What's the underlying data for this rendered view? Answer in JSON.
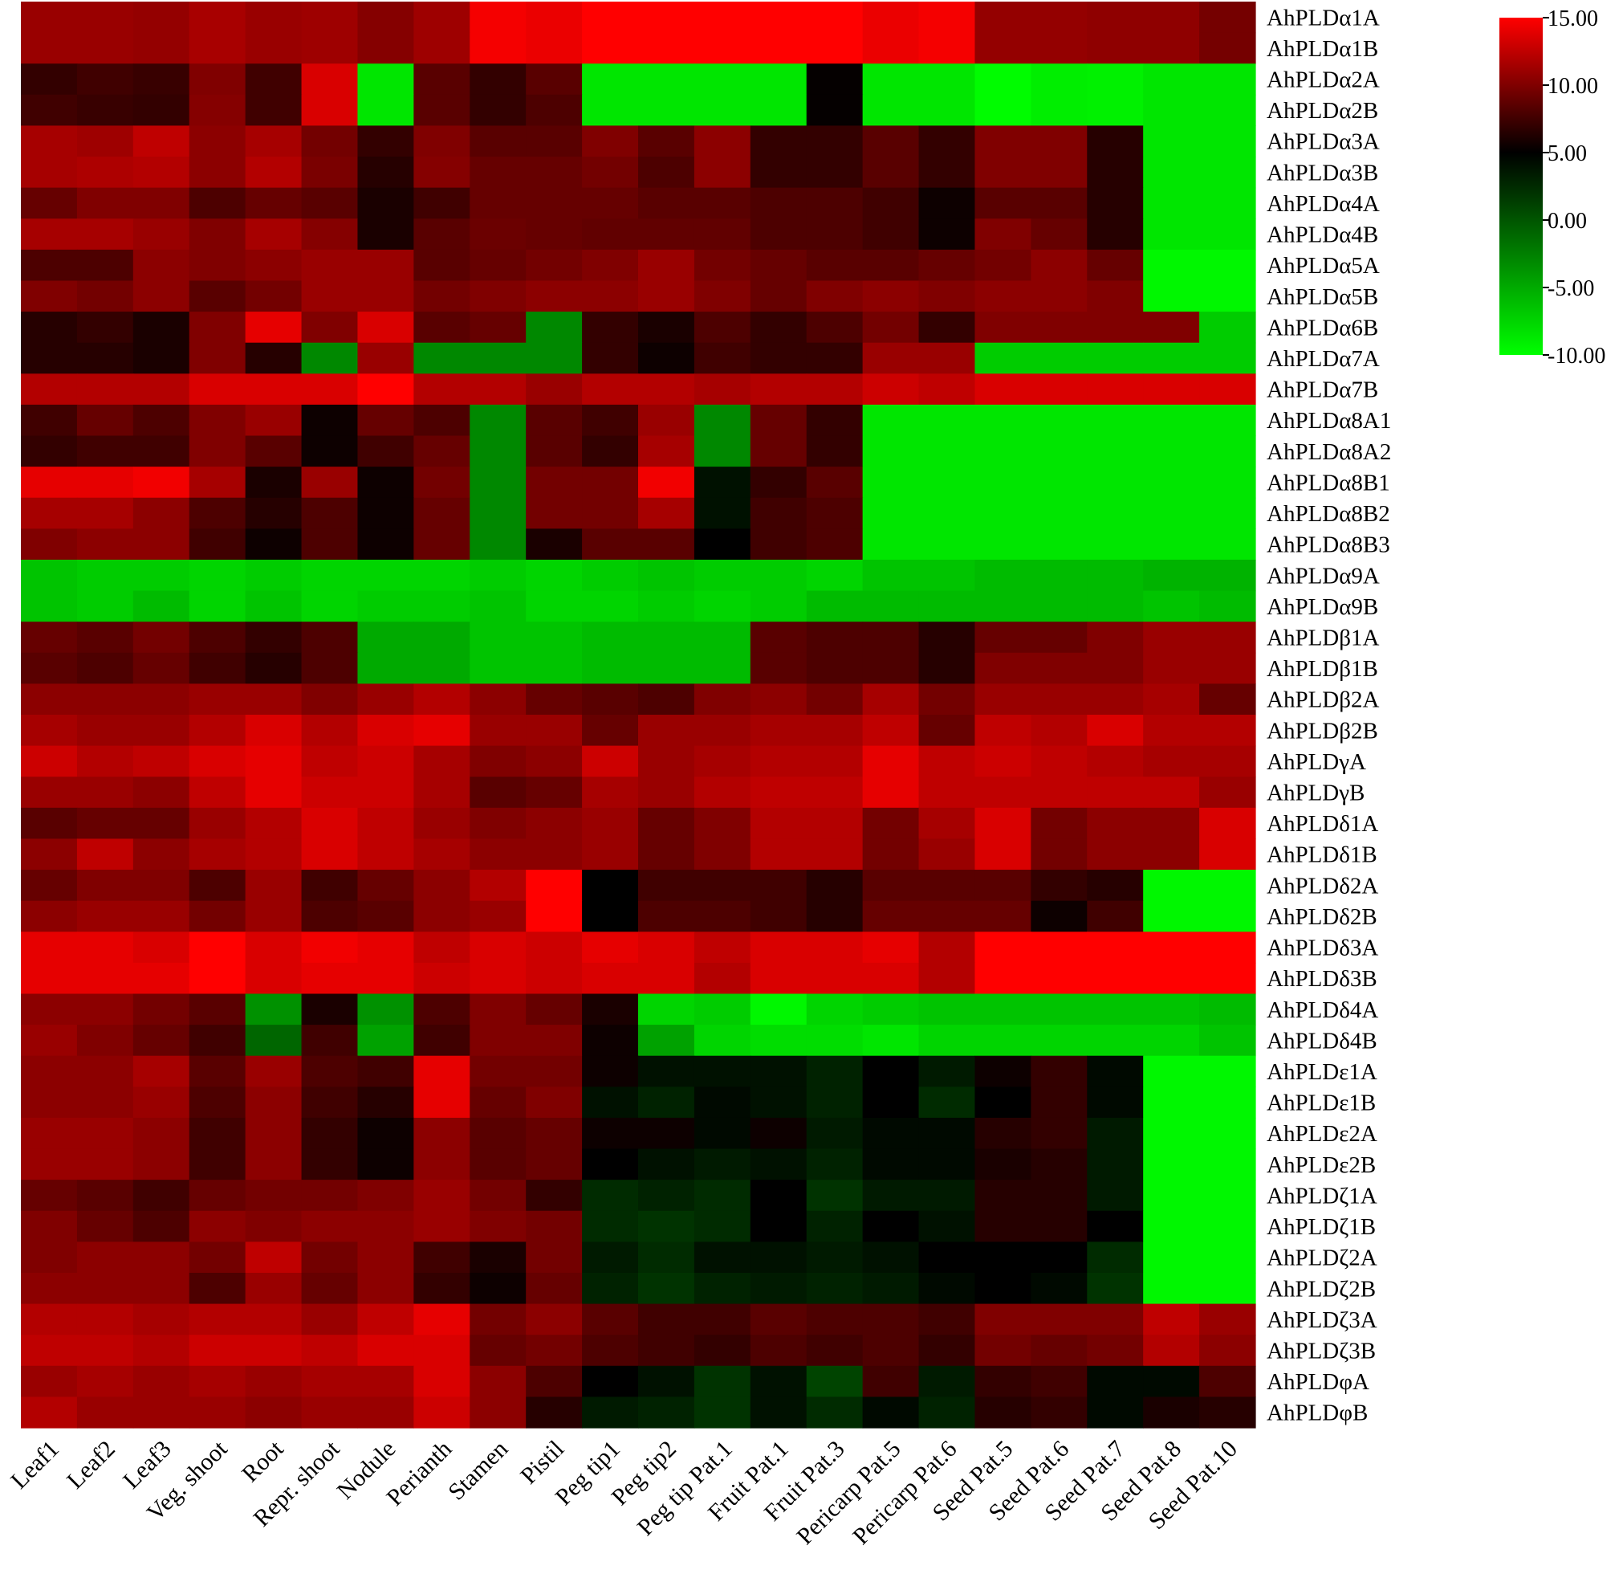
{
  "chart_data": {
    "type": "heatmap",
    "title": "",
    "xlabel": "",
    "ylabel": "",
    "colorscale": {
      "min": -10,
      "max": 15,
      "stops": [
        {
          "value": -10,
          "color": "#00ff00"
        },
        {
          "value": 5,
          "color": "#000000"
        },
        {
          "value": 15,
          "color": "#ff0000"
        }
      ],
      "tick_labels": [
        "15.00",
        "10.00",
        "5.00",
        "0.00",
        "-5.00",
        "-10.00"
      ],
      "tick_values": [
        15,
        10,
        5,
        0,
        -5,
        -10
      ]
    },
    "columns": [
      "Leaf1",
      "Leaf2",
      "Leaf3",
      "Veg. shoot",
      "Root",
      "Repr. shoot",
      "Nodule",
      "Perianth",
      "Stamen",
      "Pistil",
      "Peg tip1",
      "Peg tip2",
      "Peg tip Pat.1",
      "Fruit Pat.1",
      "Fruit Pat.3",
      "Pericarp Pat.5",
      "Pericarp Pat.6",
      "Seed Pat.5",
      "Seed Pat.6",
      "Seed Pat.7",
      "Seed Pat.8",
      "Seed Pat.10"
    ],
    "rows": [
      "AhPLDα1A",
      "AhPLDα1B",
      "AhPLDα2A",
      "AhPLDα2B",
      "AhPLDα3A",
      "AhPLDα3B",
      "AhPLDα4A",
      "AhPLDα4B",
      "AhPLDα5A",
      "AhPLDα5B",
      "AhPLDα6B",
      "AhPLDα7A",
      "AhPLDα7B",
      "AhPLDα8A1",
      "AhPLDα8A2",
      "AhPLDα8B1",
      "AhPLDα8B2",
      "AhPLDα8B3",
      "AhPLDα9A",
      "AhPLDα9B",
      "AhPLDβ1A",
      "AhPLDβ1B",
      "AhPLDβ2A",
      "AhPLDβ2B",
      "AhPLDγA",
      "AhPLDγB",
      "AhPLDδ1A",
      "AhPLDδ1B",
      "AhPLDδ2A",
      "AhPLDδ2B",
      "AhPLDδ3A",
      "AhPLDδ3B",
      "AhPLDδ4A",
      "AhPLDδ4B",
      "AhPLDε1A",
      "AhPLDε1B",
      "AhPLDε2A",
      "AhPLDε2B",
      "AhPLDζ1A",
      "AhPLDζ1B",
      "AhPLDζ2A",
      "AhPLDζ2B",
      "AhPLDζ3A",
      "AhPLDζ3B",
      "AhPLDφA",
      "AhPLDφB"
    ],
    "values": [
      [
        11.0,
        11.0,
        10.8,
        11.6,
        11.0,
        11.2,
        10.2,
        11.2,
        14.6,
        14.2,
        15.0,
        15.0,
        15.0,
        15.0,
        15.0,
        14.2,
        14.6,
        10.8,
        10.8,
        10.6,
        10.6,
        9.6
      ],
      [
        11.0,
        11.0,
        10.8,
        11.6,
        11.0,
        11.2,
        10.2,
        11.2,
        14.6,
        14.2,
        15.0,
        15.0,
        15.0,
        15.0,
        15.0,
        14.2,
        14.6,
        10.8,
        10.8,
        10.6,
        10.6,
        9.6
      ],
      [
        7.0,
        7.5,
        7.2,
        10.0,
        7.5,
        13.5,
        -8.5,
        8.5,
        7.0,
        8.5,
        -8.5,
        -8.5,
        -8.5,
        -8.5,
        5.2,
        -8.5,
        -8.5,
        -9.8,
        -9.0,
        -9.2,
        -8.5,
        -8.5
      ],
      [
        7.5,
        7.2,
        7.0,
        10.2,
        7.5,
        13.5,
        -8.5,
        8.5,
        7.0,
        8.0,
        -8.5,
        -8.5,
        -8.5,
        -8.5,
        5.2,
        -8.5,
        -8.5,
        -9.8,
        -9.0,
        -9.2,
        -8.5,
        -8.5
      ],
      [
        11.5,
        11.2,
        12.5,
        10.5,
        11.5,
        9.5,
        7.0,
        10.0,
        8.5,
        8.5,
        10.0,
        8.5,
        10.5,
        7.0,
        7.0,
        8.5,
        7.0,
        10.0,
        10.0,
        6.5,
        -8.5,
        -8.5
      ],
      [
        11.5,
        11.8,
        12.0,
        10.5,
        12.0,
        9.8,
        6.5,
        10.2,
        9.0,
        9.0,
        9.5,
        8.0,
        10.5,
        7.0,
        7.0,
        8.5,
        7.0,
        10.0,
        10.0,
        6.5,
        -8.5,
        -8.5
      ],
      [
        9.0,
        10.0,
        10.0,
        8.0,
        9.0,
        8.5,
        6.0,
        7.5,
        9.0,
        9.0,
        9.0,
        8.5,
        8.5,
        8.0,
        8.0,
        7.5,
        5.5,
        8.5,
        8.5,
        6.5,
        -8.5,
        -8.5
      ],
      [
        11.5,
        11.5,
        11.0,
        10.0,
        11.5,
        10.2,
        6.0,
        8.5,
        9.2,
        9.0,
        8.8,
        8.8,
        8.8,
        8.0,
        8.0,
        7.5,
        5.5,
        10.0,
        9.0,
        6.5,
        -8.5,
        -8.5
      ],
      [
        8.0,
        8.0,
        10.5,
        10.0,
        10.5,
        11.0,
        11.0,
        8.5,
        9.0,
        9.5,
        10.0,
        11.0,
        9.5,
        9.0,
        8.5,
        8.5,
        9.0,
        9.5,
        10.5,
        9.0,
        -9.5,
        -9.5
      ],
      [
        10.0,
        9.5,
        10.5,
        8.5,
        9.5,
        11.0,
        11.0,
        9.5,
        10.0,
        10.5,
        10.5,
        11.0,
        10.0,
        9.0,
        10.0,
        10.5,
        10.0,
        10.5,
        10.5,
        10.0,
        -9.5,
        -9.5
      ],
      [
        6.5,
        7.0,
        6.0,
        10.0,
        14.0,
        10.0,
        13.5,
        8.5,
        9.0,
        -3.0,
        7.0,
        6.0,
        8.0,
        7.0,
        8.0,
        9.5,
        7.0,
        10.0,
        10.0,
        10.0,
        10.0,
        -7.0
      ],
      [
        6.5,
        6.5,
        6.0,
        10.0,
        6.5,
        -3.0,
        11.0,
        -3.0,
        -3.0,
        -3.0,
        7.0,
        5.5,
        7.5,
        7.0,
        7.0,
        11.0,
        11.0,
        -7.0,
        -7.0,
        -7.0,
        -7.0,
        -7.0
      ],
      [
        12.0,
        12.0,
        12.0,
        13.5,
        13.5,
        13.5,
        15.0,
        12.0,
        12.0,
        11.0,
        12.0,
        12.0,
        11.5,
        12.0,
        12.0,
        13.0,
        12.5,
        13.5,
        13.5,
        13.5,
        13.5,
        13.5
      ],
      [
        7.5,
        9.0,
        8.0,
        10.0,
        11.0,
        5.5,
        9.0,
        8.0,
        -3.0,
        8.5,
        7.5,
        11.0,
        -3.0,
        9.0,
        7.0,
        -8.5,
        -8.5,
        -8.5,
        -8.5,
        -8.5,
        -8.5,
        -8.5
      ],
      [
        7.0,
        7.5,
        7.5,
        10.0,
        8.5,
        5.5,
        7.5,
        9.0,
        -3.0,
        8.5,
        7.0,
        11.5,
        -3.0,
        9.0,
        7.0,
        -8.5,
        -8.5,
        -8.5,
        -8.5,
        -8.5,
        -8.5,
        -8.5
      ],
      [
        14.0,
        14.0,
        14.5,
        11.5,
        6.0,
        11.0,
        5.5,
        9.5,
        -3.0,
        9.5,
        9.5,
        14.5,
        4.0,
        7.0,
        8.5,
        -8.5,
        -8.5,
        -8.5,
        -8.5,
        -8.5,
        -8.5,
        -8.5
      ],
      [
        11.5,
        11.5,
        10.5,
        8.0,
        6.5,
        8.0,
        5.5,
        9.0,
        -3.0,
        9.5,
        9.5,
        11.5,
        4.0,
        7.5,
        8.0,
        -8.5,
        -8.5,
        -8.5,
        -8.5,
        -8.5,
        -8.5,
        -8.5
      ],
      [
        10.0,
        10.5,
        10.5,
        7.5,
        5.5,
        8.0,
        5.5,
        9.0,
        -3.0,
        6.0,
        8.5,
        8.5,
        5.0,
        7.5,
        8.0,
        -8.5,
        -8.5,
        -8.5,
        -8.5,
        -8.5,
        -8.5,
        -8.5
      ],
      [
        -6.5,
        -7.0,
        -7.0,
        -7.5,
        -7.0,
        -7.5,
        -7.5,
        -7.5,
        -7.0,
        -7.5,
        -7.0,
        -6.5,
        -7.0,
        -7.0,
        -7.5,
        -6.5,
        -6.5,
        -6.0,
        -6.0,
        -6.0,
        -5.5,
        -5.5
      ],
      [
        -6.5,
        -7.0,
        -6.0,
        -7.5,
        -6.5,
        -7.5,
        -7.0,
        -7.0,
        -6.5,
        -7.5,
        -7.5,
        -7.0,
        -7.5,
        -7.0,
        -6.0,
        -6.0,
        -6.0,
        -6.0,
        -6.0,
        -6.0,
        -6.5,
        -6.0
      ],
      [
        9.0,
        8.5,
        9.5,
        8.0,
        7.0,
        8.0,
        -5.0,
        -5.0,
        -6.5,
        -6.5,
        -6.0,
        -6.0,
        -6.0,
        8.5,
        8.0,
        8.0,
        6.5,
        9.0,
        9.0,
        10.0,
        11.0,
        11.0
      ],
      [
        8.5,
        8.0,
        9.0,
        7.5,
        6.5,
        8.0,
        -5.0,
        -5.0,
        -6.5,
        -6.5,
        -6.0,
        -6.0,
        -6.0,
        8.5,
        8.0,
        8.0,
        6.5,
        10.0,
        10.0,
        10.0,
        11.0,
        11.0
      ],
      [
        10.5,
        10.5,
        10.5,
        11.0,
        11.0,
        10.0,
        11.0,
        12.0,
        10.5,
        9.0,
        8.5,
        8.0,
        10.0,
        10.5,
        9.5,
        11.5,
        9.5,
        11.0,
        11.0,
        11.0,
        11.5,
        9.0
      ],
      [
        11.5,
        11.0,
        11.0,
        12.0,
        13.5,
        12.0,
        13.5,
        14.0,
        11.0,
        11.0,
        9.0,
        11.0,
        11.0,
        11.5,
        11.5,
        12.5,
        9.0,
        12.5,
        12.0,
        13.5,
        12.0,
        12.0
      ],
      [
        13.0,
        12.0,
        12.5,
        13.5,
        14.0,
        12.5,
        13.0,
        11.5,
        10.0,
        10.5,
        13.0,
        11.0,
        11.5,
        12.0,
        12.0,
        14.0,
        12.5,
        13.0,
        12.5,
        12.0,
        11.5,
        11.5
      ],
      [
        11.0,
        11.0,
        10.5,
        12.5,
        14.0,
        13.0,
        13.0,
        11.5,
        8.5,
        9.0,
        11.5,
        11.0,
        12.0,
        12.5,
        12.5,
        14.0,
        12.5,
        12.5,
        12.5,
        12.5,
        12.5,
        11.0
      ],
      [
        8.5,
        9.0,
        9.0,
        11.0,
        12.0,
        13.5,
        12.5,
        11.0,
        10.0,
        10.5,
        11.0,
        9.0,
        10.0,
        12.0,
        12.0,
        9.5,
        11.5,
        13.5,
        9.5,
        10.5,
        10.5,
        13.5
      ],
      [
        10.5,
        12.5,
        10.5,
        11.5,
        12.0,
        13.5,
        12.5,
        11.5,
        10.5,
        10.5,
        11.0,
        9.0,
        10.0,
        12.0,
        12.0,
        9.5,
        11.0,
        13.5,
        9.5,
        10.5,
        10.5,
        13.5
      ],
      [
        9.0,
        10.0,
        10.0,
        8.0,
        11.0,
        7.5,
        9.0,
        10.5,
        12.0,
        15.0,
        5.0,
        7.5,
        7.5,
        7.5,
        6.5,
        8.5,
        8.5,
        8.5,
        7.0,
        6.5,
        -9.5,
        -9.5
      ],
      [
        10.5,
        11.0,
        11.0,
        9.5,
        11.0,
        8.0,
        8.5,
        10.5,
        11.0,
        15.0,
        5.0,
        8.0,
        8.0,
        7.5,
        6.5,
        9.0,
        9.0,
        9.0,
        5.5,
        7.5,
        -9.5,
        -9.5
      ],
      [
        14.0,
        14.0,
        13.5,
        15.0,
        13.5,
        14.5,
        14.0,
        12.5,
        13.5,
        13.0,
        14.0,
        13.5,
        12.5,
        13.5,
        13.5,
        14.0,
        12.0,
        15.0,
        15.0,
        15.0,
        15.0,
        15.0
      ],
      [
        14.0,
        14.0,
        14.0,
        15.0,
        13.5,
        14.0,
        14.0,
        13.0,
        13.5,
        13.0,
        13.5,
        13.5,
        12.0,
        13.5,
        13.5,
        13.5,
        12.0,
        15.0,
        15.0,
        15.0,
        15.0,
        15.0
      ],
      [
        10.5,
        10.5,
        9.5,
        8.5,
        -3.5,
        6.0,
        -3.5,
        8.0,
        10.0,
        9.0,
        6.0,
        -7.5,
        -7.0,
        -9.5,
        -7.5,
        -7.0,
        -6.5,
        -6.5,
        -6.5,
        -6.5,
        -6.5,
        -6.0
      ],
      [
        11.0,
        10.0,
        9.0,
        7.5,
        -1.0,
        7.5,
        -4.5,
        7.5,
        10.0,
        10.0,
        5.5,
        -4.5,
        -7.5,
        -8.0,
        -8.0,
        -8.5,
        -7.5,
        -7.5,
        -7.5,
        -7.5,
        -7.5,
        -6.5
      ],
      [
        10.5,
        10.5,
        11.5,
        8.5,
        11.0,
        8.0,
        7.5,
        14.0,
        9.5,
        9.5,
        5.5,
        4.0,
        4.0,
        4.0,
        3.0,
        5.0,
        3.5,
        5.5,
        7.0,
        4.5,
        -9.5,
        -9.5
      ],
      [
        10.5,
        10.5,
        11.0,
        8.0,
        10.5,
        7.5,
        6.5,
        14.0,
        9.0,
        10.0,
        4.0,
        3.0,
        4.5,
        4.0,
        3.0,
        5.0,
        2.5,
        5.0,
        7.0,
        4.5,
        -9.5,
        -9.5
      ],
      [
        11.0,
        11.0,
        10.5,
        7.5,
        10.5,
        7.0,
        5.5,
        10.5,
        8.5,
        9.0,
        5.5,
        5.5,
        4.5,
        5.5,
        3.5,
        4.5,
        4.5,
        6.5,
        7.0,
        3.5,
        -9.5,
        -9.5
      ],
      [
        11.0,
        11.0,
        10.5,
        7.5,
        10.5,
        7.0,
        5.5,
        10.5,
        8.5,
        9.0,
        5.0,
        4.0,
        3.5,
        4.0,
        3.0,
        4.5,
        4.5,
        6.0,
        6.5,
        3.5,
        -9.5,
        -9.5
      ],
      [
        9.0,
        8.5,
        7.5,
        9.0,
        9.5,
        9.5,
        10.0,
        11.0,
        9.5,
        7.0,
        2.5,
        3.0,
        2.5,
        5.0,
        2.0,
        3.5,
        3.5,
        6.5,
        6.5,
        3.5,
        -9.5,
        -9.5
      ],
      [
        10.0,
        9.0,
        8.0,
        10.5,
        10.0,
        10.5,
        10.5,
        11.0,
        10.0,
        9.5,
        2.5,
        2.0,
        2.5,
        5.0,
        3.0,
        5.0,
        4.0,
        6.5,
        6.5,
        5.0,
        -9.5,
        -9.5
      ],
      [
        10.0,
        10.5,
        10.5,
        9.5,
        12.5,
        9.5,
        10.5,
        7.5,
        6.0,
        9.5,
        3.5,
        2.5,
        4.0,
        4.0,
        3.5,
        4.0,
        5.0,
        5.0,
        5.0,
        2.5,
        -9.5,
        -9.5
      ],
      [
        10.5,
        10.5,
        10.5,
        8.0,
        11.0,
        9.0,
        10.5,
        7.0,
        5.5,
        9.0,
        3.0,
        2.0,
        3.0,
        3.5,
        3.0,
        3.5,
        4.5,
        5.0,
        4.5,
        2.0,
        -9.5,
        -9.5
      ],
      [
        12.0,
        12.0,
        11.5,
        12.0,
        12.0,
        11.0,
        12.5,
        14.0,
        9.5,
        10.5,
        8.5,
        7.5,
        7.5,
        8.5,
        8.0,
        8.0,
        7.5,
        10.0,
        10.0,
        10.0,
        12.5,
        11.0
      ],
      [
        12.5,
        12.5,
        12.0,
        13.0,
        13.0,
        12.5,
        13.5,
        13.5,
        9.0,
        9.5,
        8.0,
        7.5,
        7.0,
        8.0,
        7.5,
        8.0,
        7.0,
        9.5,
        9.0,
        9.5,
        12.0,
        10.5
      ],
      [
        11.0,
        11.5,
        11.0,
        11.5,
        11.0,
        11.5,
        11.5,
        13.5,
        10.5,
        8.0,
        5.0,
        4.0,
        2.0,
        4.0,
        1.0,
        7.5,
        3.5,
        7.0,
        7.5,
        4.5,
        4.5,
        8.0
      ],
      [
        12.0,
        11.0,
        11.0,
        11.0,
        10.5,
        11.0,
        11.0,
        13.0,
        10.5,
        6.5,
        3.5,
        3.0,
        2.0,
        4.0,
        2.5,
        4.5,
        3.0,
        6.5,
        7.0,
        4.5,
        6.0,
        6.5
      ]
    ]
  }
}
